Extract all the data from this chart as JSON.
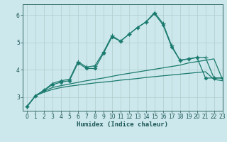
{
  "title": "",
  "xlabel": "Humidex (Indice chaleur)",
  "xlim": [
    -0.5,
    23
  ],
  "ylim": [
    2.5,
    6.4
  ],
  "yticks": [
    3,
    4,
    5,
    6
  ],
  "xticks": [
    0,
    1,
    2,
    3,
    4,
    5,
    6,
    7,
    8,
    9,
    10,
    11,
    12,
    13,
    14,
    15,
    16,
    17,
    18,
    19,
    20,
    21,
    22,
    23
  ],
  "bg_color": "#cde8ec",
  "grid_color": "#b0cccc",
  "line_color": "#1a7a6e",
  "line_width": 0.9,
  "marker_size": 2.5,
  "curve_diamond": [
    2.65,
    3.05,
    3.25,
    3.45,
    3.55,
    3.6,
    4.25,
    4.05,
    4.05,
    4.6,
    5.2,
    5.05,
    5.3,
    5.55,
    5.75,
    6.05,
    5.65,
    4.85,
    4.35,
    4.4,
    4.45,
    3.7,
    3.7,
    3.7
  ],
  "curve_cross": [
    2.65,
    3.05,
    3.25,
    3.5,
    3.6,
    3.65,
    4.3,
    4.1,
    4.15,
    4.65,
    5.25,
    5.05,
    5.3,
    5.55,
    5.75,
    6.1,
    5.7,
    4.9,
    4.35,
    4.4,
    4.45,
    4.45,
    3.7,
    3.7
  ],
  "curve_line1": [
    2.65,
    3.05,
    3.22,
    3.35,
    3.42,
    3.48,
    3.54,
    3.6,
    3.65,
    3.7,
    3.76,
    3.82,
    3.87,
    3.92,
    3.97,
    4.02,
    4.07,
    4.12,
    4.17,
    4.25,
    4.3,
    4.35,
    4.4,
    3.65
  ],
  "curve_line2": [
    2.65,
    3.05,
    3.18,
    3.28,
    3.35,
    3.4,
    3.44,
    3.48,
    3.52,
    3.55,
    3.58,
    3.62,
    3.65,
    3.68,
    3.72,
    3.75,
    3.78,
    3.81,
    3.84,
    3.87,
    3.9,
    3.93,
    3.65,
    3.6
  ]
}
